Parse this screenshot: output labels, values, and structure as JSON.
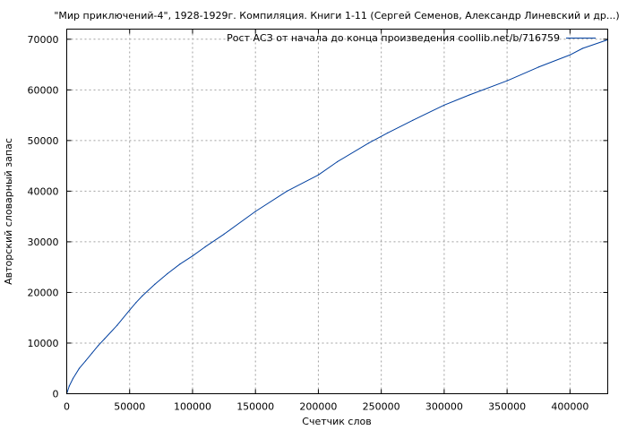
{
  "chart_data": {
    "type": "line",
    "title": "\"Мир приключений-4\", 1928-1929г. Компиляция. Книги 1-11 (Сергей Семенов, Александр Линевский и др...)",
    "xlabel": "Счетчик слов",
    "ylabel": "Авторский словарный запас",
    "xlim": [
      0,
      430000
    ],
    "ylim": [
      0,
      72000
    ],
    "x_ticks": [
      0,
      50000,
      100000,
      150000,
      200000,
      250000,
      300000,
      350000,
      400000
    ],
    "y_ticks": [
      0,
      10000,
      20000,
      30000,
      40000,
      50000,
      60000,
      70000
    ],
    "x_tick_labels": [
      "0",
      "50000",
      "100000",
      "150000",
      "200000",
      "250000",
      "300000",
      "350000",
      "400000"
    ],
    "y_tick_labels": [
      "0",
      "10000",
      "20000",
      "30000",
      "40000",
      "50000",
      "60000",
      "70000"
    ],
    "grid": true,
    "legend_position": "top-right",
    "series": [
      {
        "name": "Рост АСЗ от начала до конца произведения coollib.net/b/716759",
        "color": "#003f9f",
        "x": [
          0,
          2000,
          5000,
          10000,
          15000,
          20000,
          25000,
          30000,
          40000,
          50000,
          55000,
          60000,
          70000,
          80000,
          90000,
          100000,
          110000,
          125000,
          150000,
          175000,
          200000,
          215000,
          240000,
          255000,
          275000,
          300000,
          320000,
          350000,
          375000,
          400000,
          410000,
          430000
        ],
        "values": [
          0,
          1500,
          3000,
          5000,
          6500,
          8000,
          9500,
          10800,
          13500,
          16500,
          18000,
          19300,
          21600,
          23700,
          25600,
          27200,
          29000,
          31500,
          36000,
          40000,
          43200,
          45800,
          49500,
          51500,
          54000,
          57000,
          59000,
          61800,
          64500,
          66900,
          68200,
          69900
        ]
      }
    ]
  }
}
